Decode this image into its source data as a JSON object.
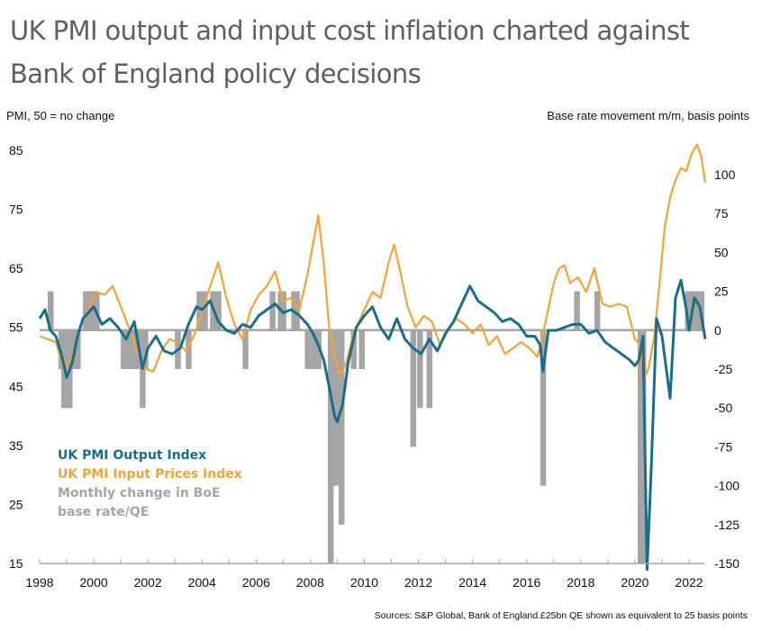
{
  "title_line1": "UK PMI output and input cost inflation charted against",
  "title_line2": "Bank of England policy decisions",
  "source_note": "Sources: S&P Global, Bank of England.£25bn QE shown as equivalent to 25 basis points",
  "chart_data": {
    "type": "line",
    "title": "UK PMI output and input cost inflation charted against Bank of England policy decisions",
    "ylabel_left": "PMI, 50 = no change",
    "ylabel_right": "Base rate movement m/m, basis points",
    "xlabel": "",
    "xlim": [
      1998,
      2022.7
    ],
    "ylim_left": [
      15,
      85
    ],
    "ylim_right": [
      -150,
      100
    ],
    "x_ticks": [
      "1998",
      "2000",
      "2002",
      "2004",
      "2006",
      "2008",
      "2010",
      "2012",
      "2014",
      "2016",
      "2018",
      "2020",
      "2022"
    ],
    "y_ticks_left": [
      "85",
      "75",
      "65",
      "55",
      "45",
      "35",
      "25",
      "15"
    ],
    "y_ticks_right": [
      "100",
      "75",
      "50",
      "25",
      "0",
      "-25",
      "-50",
      "-75",
      "-100",
      "-125",
      "-150"
    ],
    "legend_position": "bottom-left",
    "colors": {
      "output": "#1a6e8a",
      "input": "#f6a23a",
      "bars": "#a5a5a5",
      "zero_line": "#a5a5a5"
    },
    "series": [
      {
        "name": "UK PMI Output Index",
        "axis": "left",
        "x": [
          1998.0,
          1998.2,
          1998.4,
          1998.6,
          1998.8,
          1999.0,
          1999.2,
          1999.4,
          1999.6,
          1999.8,
          2000.0,
          2000.3,
          2000.6,
          2000.9,
          2001.2,
          2001.5,
          2001.8,
          2002.0,
          2002.3,
          2002.6,
          2002.9,
          2003.2,
          2003.5,
          2003.8,
          2004.0,
          2004.3,
          2004.6,
          2004.9,
          2005.2,
          2005.5,
          2005.8,
          2006.1,
          2006.4,
          2006.7,
          2007.0,
          2007.3,
          2007.6,
          2007.9,
          2008.1,
          2008.3,
          2008.5,
          2008.7,
          2008.9,
          2009.0,
          2009.2,
          2009.4,
          2009.7,
          2010.0,
          2010.3,
          2010.6,
          2010.9,
          2011.2,
          2011.5,
          2011.8,
          2012.1,
          2012.4,
          2012.7,
          2013.0,
          2013.3,
          2013.6,
          2013.9,
          2014.2,
          2014.5,
          2014.8,
          2015.1,
          2015.4,
          2015.7,
          2016.0,
          2016.3,
          2016.5,
          2016.6,
          2016.8,
          2017.1,
          2017.4,
          2017.7,
          2018.0,
          2018.3,
          2018.6,
          2018.9,
          2019.2,
          2019.5,
          2019.8,
          2020.0,
          2020.15,
          2020.3,
          2020.45,
          2020.6,
          2020.8,
          2021.0,
          2021.1,
          2021.3,
          2021.5,
          2021.7,
          2021.9,
          2022.0,
          2022.2,
          2022.4,
          2022.6
        ],
        "values": [
          56.5,
          58.0,
          54.5,
          53.5,
          50.5,
          46.5,
          49.0,
          53.5,
          56.5,
          57.5,
          58.5,
          55.5,
          56.5,
          55.0,
          53.0,
          56.0,
          48.0,
          51.5,
          53.5,
          51.0,
          50.5,
          51.5,
          55.5,
          58.5,
          58.0,
          59.5,
          56.0,
          54.5,
          54.0,
          55.5,
          55.0,
          57.0,
          58.0,
          59.0,
          57.5,
          58.0,
          57.0,
          55.5,
          54.0,
          52.0,
          49.5,
          45.0,
          40.0,
          39.0,
          42.0,
          49.0,
          55.0,
          57.0,
          58.5,
          55.0,
          53.0,
          56.5,
          53.0,
          51.5,
          50.5,
          53.0,
          51.0,
          54.0,
          56.0,
          59.0,
          62.0,
          59.5,
          58.5,
          57.5,
          56.0,
          56.5,
          55.5,
          53.5,
          53.5,
          52.0,
          47.5,
          54.5,
          54.5,
          55.0,
          55.5,
          55.5,
          54.0,
          54.5,
          52.5,
          51.5,
          50.5,
          49.5,
          48.5,
          49.5,
          53.5,
          14.0,
          30.5,
          56.5,
          53.5,
          50.0,
          43.0,
          60.0,
          63.0,
          58.0,
          54.5,
          60.0,
          58.5,
          53.0
        ]
      },
      {
        "name": "UK PMI Input Prices Index",
        "axis": "left",
        "x": [
          1998.0,
          1998.3,
          1998.6,
          1998.9,
          1999.2,
          1999.5,
          1999.8,
          2000.1,
          2000.4,
          2000.7,
          2001.0,
          2001.3,
          2001.6,
          2001.9,
          2002.2,
          2002.5,
          2002.8,
          2003.1,
          2003.4,
          2003.7,
          2004.0,
          2004.3,
          2004.6,
          2004.9,
          2005.2,
          2005.5,
          2005.8,
          2006.1,
          2006.4,
          2006.7,
          2007.0,
          2007.3,
          2007.6,
          2007.9,
          2008.1,
          2008.3,
          2008.5,
          2008.7,
          2008.9,
          2009.1,
          2009.3,
          2009.6,
          2010.0,
          2010.3,
          2010.6,
          2010.9,
          2011.1,
          2011.3,
          2011.6,
          2011.9,
          2012.2,
          2012.5,
          2012.8,
          2013.1,
          2013.4,
          2013.7,
          2014.0,
          2014.3,
          2014.6,
          2014.9,
          2015.2,
          2015.5,
          2015.8,
          2016.1,
          2016.4,
          2016.7,
          2017.0,
          2017.2,
          2017.4,
          2017.6,
          2017.9,
          2018.2,
          2018.5,
          2018.8,
          2019.1,
          2019.4,
          2019.7,
          2020.0,
          2020.2,
          2020.35,
          2020.5,
          2020.7,
          2020.9,
          2021.1,
          2021.3,
          2021.5,
          2021.7,
          2021.9,
          2022.1,
          2022.3,
          2022.45,
          2022.6
        ],
        "values": [
          53.5,
          53.0,
          52.5,
          48.0,
          50.0,
          55.0,
          58.0,
          61.0,
          60.5,
          62.0,
          58.5,
          55.0,
          51.0,
          48.0,
          47.5,
          51.0,
          53.0,
          52.5,
          51.0,
          53.5,
          57.5,
          62.0,
          66.0,
          60.0,
          55.5,
          53.0,
          58.0,
          60.5,
          62.0,
          64.5,
          59.5,
          60.0,
          58.0,
          64.0,
          69.0,
          74.0,
          66.0,
          55.0,
          50.0,
          47.0,
          48.5,
          54.0,
          58.0,
          61.0,
          60.0,
          66.0,
          69.0,
          65.0,
          58.5,
          55.0,
          57.0,
          56.0,
          52.0,
          54.5,
          56.5,
          55.5,
          54.0,
          55.5,
          52.0,
          53.5,
          50.5,
          51.5,
          52.5,
          51.5,
          50.0,
          56.0,
          62.5,
          65.0,
          65.5,
          62.5,
          63.5,
          61.0,
          65.0,
          59.0,
          58.5,
          59.0,
          58.5,
          53.0,
          52.0,
          46.5,
          48.0,
          53.0,
          62.0,
          72.0,
          77.0,
          80.0,
          82.0,
          81.5,
          84.5,
          86.0,
          84.0,
          79.5
        ]
      }
    ],
    "bars": {
      "name": "Monthly change in BoE base rate/QE",
      "axis": "right",
      "label_line1": "Monthly change in BoE",
      "label_line2": "base rate/QE",
      "events": [
        {
          "x": 1998.4,
          "bp": 25
        },
        {
          "x": 1998.8,
          "bp": -25
        },
        {
          "x": 1998.9,
          "bp": -50
        },
        {
          "x": 1999.0,
          "bp": -50
        },
        {
          "x": 1999.1,
          "bp": -50
        },
        {
          "x": 1999.2,
          "bp": -25
        },
        {
          "x": 1999.4,
          "bp": -25
        },
        {
          "x": 1999.7,
          "bp": 25
        },
        {
          "x": 1999.9,
          "bp": 25
        },
        {
          "x": 2000.0,
          "bp": 25
        },
        {
          "x": 2000.1,
          "bp": 25
        },
        {
          "x": 2001.1,
          "bp": -25
        },
        {
          "x": 2001.3,
          "bp": -25
        },
        {
          "x": 2001.5,
          "bp": -25
        },
        {
          "x": 2001.6,
          "bp": -25
        },
        {
          "x": 2001.7,
          "bp": -25
        },
        {
          "x": 2001.8,
          "bp": -50
        },
        {
          "x": 2001.9,
          "bp": -25
        },
        {
          "x": 2003.1,
          "bp": -25
        },
        {
          "x": 2003.5,
          "bp": -25
        },
        {
          "x": 2003.9,
          "bp": 25
        },
        {
          "x": 2004.1,
          "bp": 25
        },
        {
          "x": 2004.4,
          "bp": 25
        },
        {
          "x": 2004.5,
          "bp": 25
        },
        {
          "x": 2004.6,
          "bp": 25
        },
        {
          "x": 2005.6,
          "bp": -25
        },
        {
          "x": 2006.6,
          "bp": 25
        },
        {
          "x": 2006.9,
          "bp": 25
        },
        {
          "x": 2007.0,
          "bp": 25
        },
        {
          "x": 2007.4,
          "bp": 25
        },
        {
          "x": 2007.5,
          "bp": 25
        },
        {
          "x": 2007.9,
          "bp": -25
        },
        {
          "x": 2008.1,
          "bp": -25
        },
        {
          "x": 2008.3,
          "bp": -25
        },
        {
          "x": 2008.75,
          "bp": -150
        },
        {
          "x": 2008.85,
          "bp": -100
        },
        {
          "x": 2008.95,
          "bp": -100
        },
        {
          "x": 2009.05,
          "bp": -50
        },
        {
          "x": 2009.15,
          "bp": -125
        },
        {
          "x": 2009.6,
          "bp": -25
        },
        {
          "x": 2009.9,
          "bp": -25
        },
        {
          "x": 2011.8,
          "bp": -75
        },
        {
          "x": 2012.05,
          "bp": -50
        },
        {
          "x": 2012.4,
          "bp": -50
        },
        {
          "x": 2016.6,
          "bp": -100
        },
        {
          "x": 2017.85,
          "bp": 25
        },
        {
          "x": 2018.6,
          "bp": 25
        },
        {
          "x": 2020.2,
          "bp": -150
        },
        {
          "x": 2020.3,
          "bp": -150
        },
        {
          "x": 2021.95,
          "bp": 25
        },
        {
          "x": 2022.1,
          "bp": 25
        },
        {
          "x": 2022.2,
          "bp": 25
        },
        {
          "x": 2022.35,
          "bp": 25
        },
        {
          "x": 2022.45,
          "bp": 25
        }
      ]
    }
  }
}
